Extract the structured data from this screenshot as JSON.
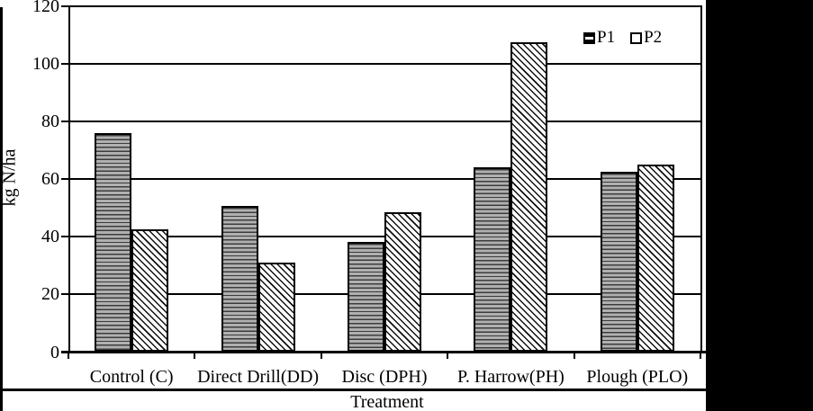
{
  "figure": {
    "ylabel": "kg N/ha",
    "xlabel": "Treatment",
    "legend": {
      "p1_label": "P1",
      "p2_label": "P2"
    }
  },
  "chart_data": {
    "type": "bar",
    "categories": [
      "Control (C)",
      "Direct Drill(DD)",
      "Disc (DPH)",
      "P. Harrow(PH)",
      "Plough (PLO)"
    ],
    "series": [
      {
        "name": "P1",
        "hatch": "horizontal-lines",
        "values": [
          76,
          50.5,
          38,
          64,
          62.5
        ]
      },
      {
        "name": "P2",
        "hatch": "diagonal-lines",
        "values": [
          42.5,
          31,
          48.5,
          107.5,
          65
        ]
      }
    ],
    "title": "",
    "xlabel": "Treatment",
    "ylabel": "kg N/ha",
    "ylim": [
      0,
      120
    ],
    "yticks": [
      0,
      20,
      40,
      60,
      80,
      100,
      120
    ],
    "grid": true,
    "legend_position": "top-right-inside"
  },
  "colors": {
    "axis": "#000000",
    "p1_line": "#3c3c3c",
    "p1_bg": "#b0b0b0",
    "p2_line": "#101010",
    "p2_bg": "#ffffff",
    "side_band": "#000000"
  }
}
